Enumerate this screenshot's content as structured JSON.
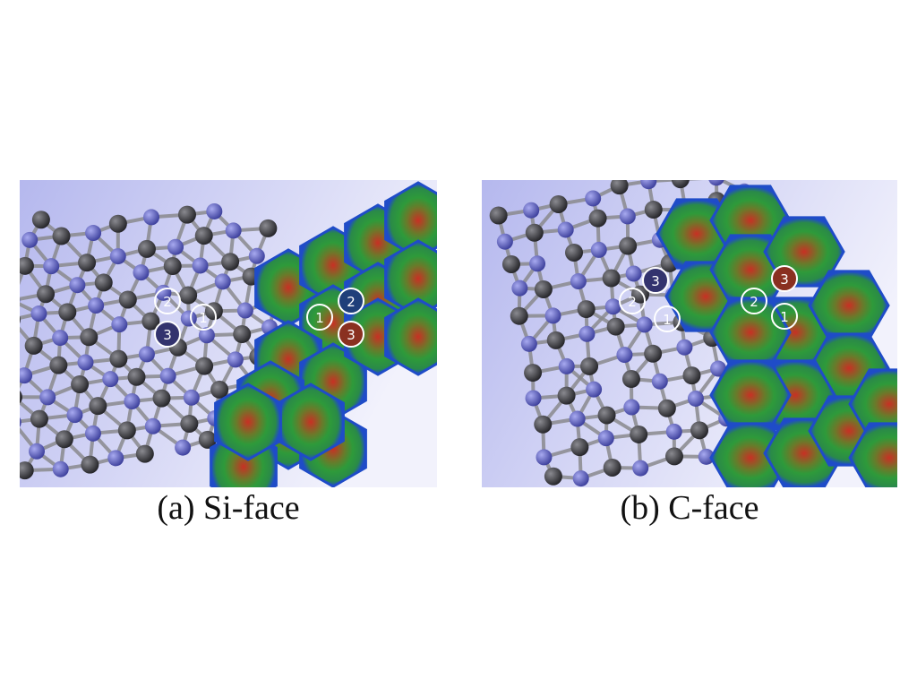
{
  "figure": {
    "panels": [
      {
        "id": "a",
        "caption": "(a) Si-face",
        "colors": {
          "background_left": "#b5b8ee",
          "background_right": "#f2f2fc",
          "atom_carbon": "#3a3a3e",
          "atom_silicon": "#5c5fc8",
          "bond": "#8a8a8e",
          "tile_edge": "#1f4cc8",
          "tile_mid": "#2e9a3a",
          "tile_center": "#c83024"
        },
        "markers": [
          {
            "label": "2",
            "fill": "none"
          },
          {
            "label": "1",
            "fill": "none"
          },
          {
            "label": "3",
            "fill": "#33336e"
          },
          {
            "label": "2",
            "fill": "#1f3f7a"
          },
          {
            "label": "1",
            "fill": "none"
          },
          {
            "label": "3",
            "fill": "#8a3020"
          }
        ]
      },
      {
        "id": "b",
        "caption": "(b) C-face",
        "colors": {
          "background_left": "#b5b8ee",
          "background_right": "#f2f2fc",
          "atom_carbon": "#3a3a3e",
          "atom_silicon": "#5c5fc8",
          "bond": "#8a8a8e",
          "tile_edge": "#1f4cc8",
          "tile_mid": "#2e9a3a",
          "tile_center": "#c83024"
        },
        "markers": [
          {
            "label": "3",
            "fill": "#33336e"
          },
          {
            "label": "2",
            "fill": "none"
          },
          {
            "label": "1",
            "fill": "none"
          },
          {
            "label": "3",
            "fill": "#8a3020"
          },
          {
            "label": "2",
            "fill": "none"
          },
          {
            "label": "1",
            "fill": "none"
          }
        ]
      }
    ]
  }
}
